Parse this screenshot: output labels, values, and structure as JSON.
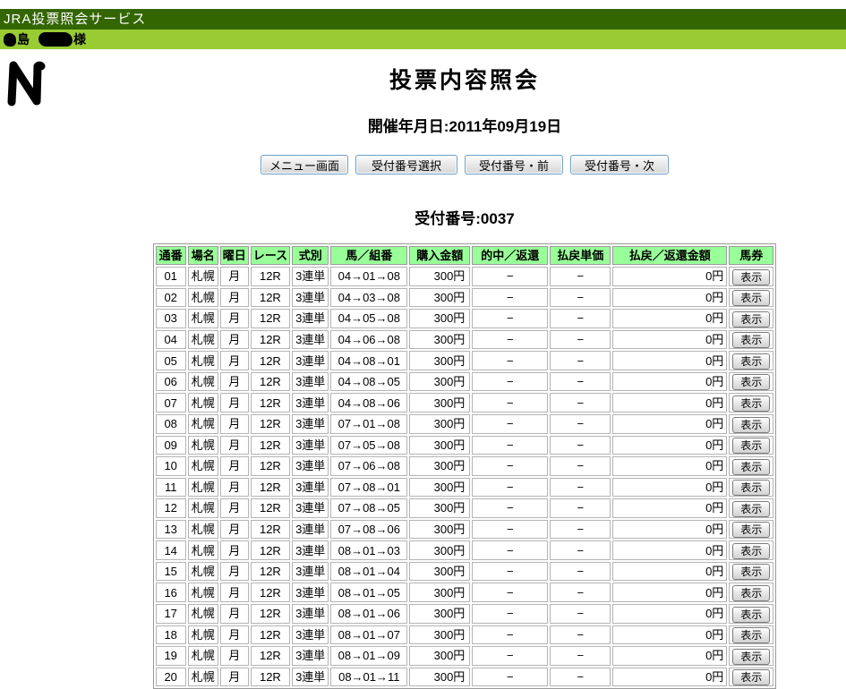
{
  "header": {
    "service_title": "JRA投票照会サービス",
    "user_surname_visible": "島",
    "user_honorific": "様"
  },
  "page": {
    "title": "投票内容照会",
    "date_line": "開催年月日:2011年09月19日",
    "reception_line": "受付番号:0037"
  },
  "nav_buttons": {
    "menu": "メニュー画面",
    "select_number": "受付番号選択",
    "prev_number": "受付番号・前",
    "next_number": "受付番号・次"
  },
  "table": {
    "headers": [
      "通番",
      "場名",
      "曜日",
      "レース",
      "式別",
      "馬／組番",
      "購入金額",
      "的中／返還",
      "払戻単価",
      "払戻／返還金額",
      "馬券"
    ],
    "show_button_label": "表示",
    "rows": [
      {
        "no": "01",
        "venue": "札幌",
        "day": "月",
        "race": "12R",
        "type": "3連単",
        "numbers": "04→01→08",
        "amount": "300円",
        "hit": "−",
        "unit": "−",
        "payout": "0円"
      },
      {
        "no": "02",
        "venue": "札幌",
        "day": "月",
        "race": "12R",
        "type": "3連単",
        "numbers": "04→03→08",
        "amount": "300円",
        "hit": "−",
        "unit": "−",
        "payout": "0円"
      },
      {
        "no": "03",
        "venue": "札幌",
        "day": "月",
        "race": "12R",
        "type": "3連単",
        "numbers": "04→05→08",
        "amount": "300円",
        "hit": "−",
        "unit": "−",
        "payout": "0円"
      },
      {
        "no": "04",
        "venue": "札幌",
        "day": "月",
        "race": "12R",
        "type": "3連単",
        "numbers": "04→06→08",
        "amount": "300円",
        "hit": "−",
        "unit": "−",
        "payout": "0円"
      },
      {
        "no": "05",
        "venue": "札幌",
        "day": "月",
        "race": "12R",
        "type": "3連単",
        "numbers": "04→08→01",
        "amount": "300円",
        "hit": "−",
        "unit": "−",
        "payout": "0円"
      },
      {
        "no": "06",
        "venue": "札幌",
        "day": "月",
        "race": "12R",
        "type": "3連単",
        "numbers": "04→08→05",
        "amount": "300円",
        "hit": "−",
        "unit": "−",
        "payout": "0円"
      },
      {
        "no": "07",
        "venue": "札幌",
        "day": "月",
        "race": "12R",
        "type": "3連単",
        "numbers": "04→08→06",
        "amount": "300円",
        "hit": "−",
        "unit": "−",
        "payout": "0円"
      },
      {
        "no": "08",
        "venue": "札幌",
        "day": "月",
        "race": "12R",
        "type": "3連単",
        "numbers": "07→01→08",
        "amount": "300円",
        "hit": "−",
        "unit": "−",
        "payout": "0円"
      },
      {
        "no": "09",
        "venue": "札幌",
        "day": "月",
        "race": "12R",
        "type": "3連単",
        "numbers": "07→05→08",
        "amount": "300円",
        "hit": "−",
        "unit": "−",
        "payout": "0円"
      },
      {
        "no": "10",
        "venue": "札幌",
        "day": "月",
        "race": "12R",
        "type": "3連単",
        "numbers": "07→06→08",
        "amount": "300円",
        "hit": "−",
        "unit": "−",
        "payout": "0円"
      },
      {
        "no": "11",
        "venue": "札幌",
        "day": "月",
        "race": "12R",
        "type": "3連単",
        "numbers": "07→08→01",
        "amount": "300円",
        "hit": "−",
        "unit": "−",
        "payout": "0円"
      },
      {
        "no": "12",
        "venue": "札幌",
        "day": "月",
        "race": "12R",
        "type": "3連単",
        "numbers": "07→08→05",
        "amount": "300円",
        "hit": "−",
        "unit": "−",
        "payout": "0円"
      },
      {
        "no": "13",
        "venue": "札幌",
        "day": "月",
        "race": "12R",
        "type": "3連単",
        "numbers": "07→08→06",
        "amount": "300円",
        "hit": "−",
        "unit": "−",
        "payout": "0円"
      },
      {
        "no": "14",
        "venue": "札幌",
        "day": "月",
        "race": "12R",
        "type": "3連単",
        "numbers": "08→01→03",
        "amount": "300円",
        "hit": "−",
        "unit": "−",
        "payout": "0円"
      },
      {
        "no": "15",
        "venue": "札幌",
        "day": "月",
        "race": "12R",
        "type": "3連単",
        "numbers": "08→01→04",
        "amount": "300円",
        "hit": "−",
        "unit": "−",
        "payout": "0円"
      },
      {
        "no": "16",
        "venue": "札幌",
        "day": "月",
        "race": "12R",
        "type": "3連単",
        "numbers": "08→01→05",
        "amount": "300円",
        "hit": "−",
        "unit": "−",
        "payout": "0円"
      },
      {
        "no": "17",
        "venue": "札幌",
        "day": "月",
        "race": "12R",
        "type": "3連単",
        "numbers": "08→01→06",
        "amount": "300円",
        "hit": "−",
        "unit": "−",
        "payout": "0円"
      },
      {
        "no": "18",
        "venue": "札幌",
        "day": "月",
        "race": "12R",
        "type": "3連単",
        "numbers": "08→01→07",
        "amount": "300円",
        "hit": "−",
        "unit": "−",
        "payout": "0円"
      },
      {
        "no": "19",
        "venue": "札幌",
        "day": "月",
        "race": "12R",
        "type": "3連単",
        "numbers": "08→01→09",
        "amount": "300円",
        "hit": "−",
        "unit": "−",
        "payout": "0円"
      },
      {
        "no": "20",
        "venue": "札幌",
        "day": "月",
        "race": "12R",
        "type": "3連単",
        "numbers": "08→01→11",
        "amount": "300円",
        "hit": "−",
        "unit": "−",
        "payout": "0円"
      }
    ]
  },
  "colors": {
    "title_bar_bg": "#336600",
    "user_bar_bg": "#99cc33",
    "table_header_bg": "#99ff99"
  }
}
